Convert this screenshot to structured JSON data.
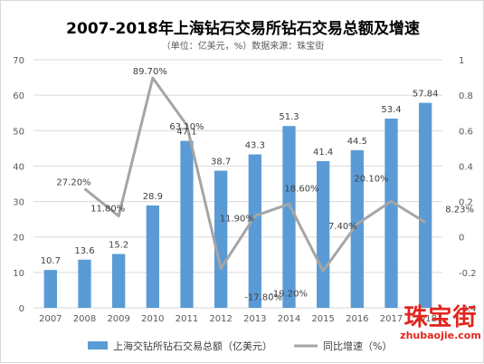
{
  "chart_data": {
    "type": "bar+line",
    "title": "2007-2018年上海钻石交易所钻石交易总额及增速",
    "subtitle": "（单位：亿美元，%）数据来源：珠宝街",
    "categories": [
      "2007",
      "2008",
      "2009",
      "2010",
      "2011",
      "2012",
      "2013",
      "2014",
      "2015",
      "2016",
      "2017",
      "2018"
    ],
    "series": [
      {
        "name": "上海交钻所钻石交易总额（亿美元）",
        "type": "bar",
        "axis": "left",
        "color": "#5b9bd5",
        "values": [
          10.7,
          13.6,
          15.2,
          28.9,
          47.1,
          38.7,
          43.3,
          51.3,
          41.4,
          44.5,
          53.4,
          57.84
        ],
        "labels": [
          "10.7",
          "13.6",
          "15.2",
          "28.9",
          "47.1",
          "38.7",
          "43.3",
          "51.3",
          "41.4",
          "44.5",
          "53.4",
          "57.84"
        ]
      },
      {
        "name": "同比增速（%）",
        "type": "line",
        "axis": "right",
        "color": "#a5a5a5",
        "x": [
          "2008",
          "2009",
          "2010",
          "2011",
          "2012",
          "2013",
          "2014",
          "2015",
          "2016",
          "2017",
          "2018"
        ],
        "values": [
          0.272,
          0.118,
          0.897,
          0.631,
          -0.178,
          0.119,
          0.186,
          -0.192,
          0.074,
          0.201,
          0.0823
        ],
        "labels": [
          "27.20%",
          "11.80%",
          "89.70%",
          "63.10%",
          "-17.80%",
          "11.90%",
          "18.60%",
          "-19.20%",
          "7.40%",
          "20.10%",
          "8.23%"
        ]
      }
    ],
    "y_left": {
      "min": 0,
      "max": 70,
      "ticks": [
        "0",
        "10",
        "20",
        "30",
        "40",
        "50",
        "60",
        "70"
      ]
    },
    "y_right": {
      "min": -0.4,
      "max": 1,
      "ticks": [
        "-0.4",
        "-0.2",
        "0",
        "0.2",
        "0.4",
        "0.6",
        "0.8",
        "1"
      ]
    },
    "grid": true,
    "legend_position": "bottom"
  },
  "watermark": {
    "cn": "珠宝街",
    "en": "zhubaojie.com"
  }
}
